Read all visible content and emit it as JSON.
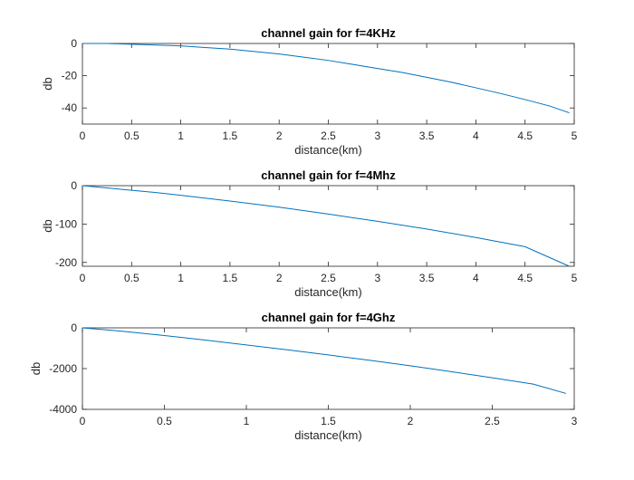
{
  "chart_data": [
    {
      "type": "line",
      "title": "channel gain for f=4KHz",
      "xlabel": "distance(km)",
      "ylabel": "db",
      "xlim": [
        0,
        5
      ],
      "ylim": [
        -50,
        0
      ],
      "xticks": [
        0,
        0.5,
        1,
        1.5,
        2,
        2.5,
        3,
        3.5,
        4,
        4.5,
        5
      ],
      "xtick_labels": [
        "0",
        "0.5",
        "1",
        "1.5",
        "2",
        "2.5",
        "3",
        "3.5",
        "4",
        "4.5",
        "5"
      ],
      "yticks": [
        -40,
        -20,
        0
      ],
      "ytick_labels": [
        "-40",
        "-20",
        "0"
      ],
      "grid": false,
      "color": "#0072BD",
      "series": [
        {
          "x": [
            0,
            0.25,
            0.5,
            0.75,
            1,
            1.25,
            1.5,
            1.75,
            2,
            2.25,
            2.5,
            2.75,
            3,
            3.25,
            3.5,
            3.75,
            4,
            4.25,
            4.5,
            4.75,
            4.95
          ],
          "values": [
            0,
            0,
            -0.5,
            -1,
            -1.5,
            -2.5,
            -3.5,
            -5,
            -6.5,
            -8.5,
            -10.5,
            -13,
            -15.5,
            -18,
            -21,
            -24,
            -27.5,
            -31,
            -34.8,
            -38.8,
            -43
          ]
        }
      ]
    },
    {
      "type": "line",
      "title": "channel gain for f=4Mhz",
      "xlabel": "distance(km)",
      "ylabel": "db",
      "xlim": [
        0,
        5
      ],
      "ylim": [
        -210,
        0
      ],
      "xticks": [
        0,
        0.5,
        1,
        1.5,
        2,
        2.5,
        3,
        3.5,
        4,
        4.5,
        5
      ],
      "xtick_labels": [
        "0",
        "0.5",
        "1",
        "1.5",
        "2",
        "2.5",
        "3",
        "3.5",
        "4",
        "4.5",
        "5"
      ],
      "yticks": [
        -200,
        -100,
        0
      ],
      "ytick_labels": [
        "-200",
        "-100",
        "0"
      ],
      "grid": false,
      "color": "#0072BD",
      "series": [
        {
          "x": [
            0,
            0.25,
            0.5,
            0.75,
            1,
            1.5,
            2,
            2.5,
            3,
            3.5,
            4,
            4.5,
            4.95
          ],
          "values": [
            0,
            -6,
            -12,
            -18,
            -25,
            -40,
            -56,
            -74,
            -93,
            -113,
            -135,
            -159,
            -210
          ]
        }
      ]
    },
    {
      "type": "line",
      "title": "channel gain for f=4Ghz",
      "xlabel": "distance(km)",
      "ylabel": "db",
      "xlim": [
        0,
        3
      ],
      "ylim": [
        -4000,
        0
      ],
      "xticks": [
        0,
        0.5,
        1,
        1.5,
        2,
        2.5,
        3
      ],
      "xtick_labels": [
        "0",
        "0.5",
        "1",
        "1.5",
        "2",
        "2.5",
        "3"
      ],
      "yticks": [
        -4000,
        -2000,
        0
      ],
      "ytick_labels": [
        "-4000",
        "-2000",
        "0"
      ],
      "grid": false,
      "color": "#0072BD",
      "series": [
        {
          "x": [
            0,
            0.25,
            0.5,
            0.75,
            1,
            1.25,
            1.5,
            1.75,
            2,
            2.25,
            2.5,
            2.75,
            2.95
          ],
          "values": [
            0,
            -170,
            -380,
            -600,
            -840,
            -1080,
            -1330,
            -1590,
            -1860,
            -2150,
            -2450,
            -2760,
            -3220
          ]
        }
      ]
    }
  ]
}
